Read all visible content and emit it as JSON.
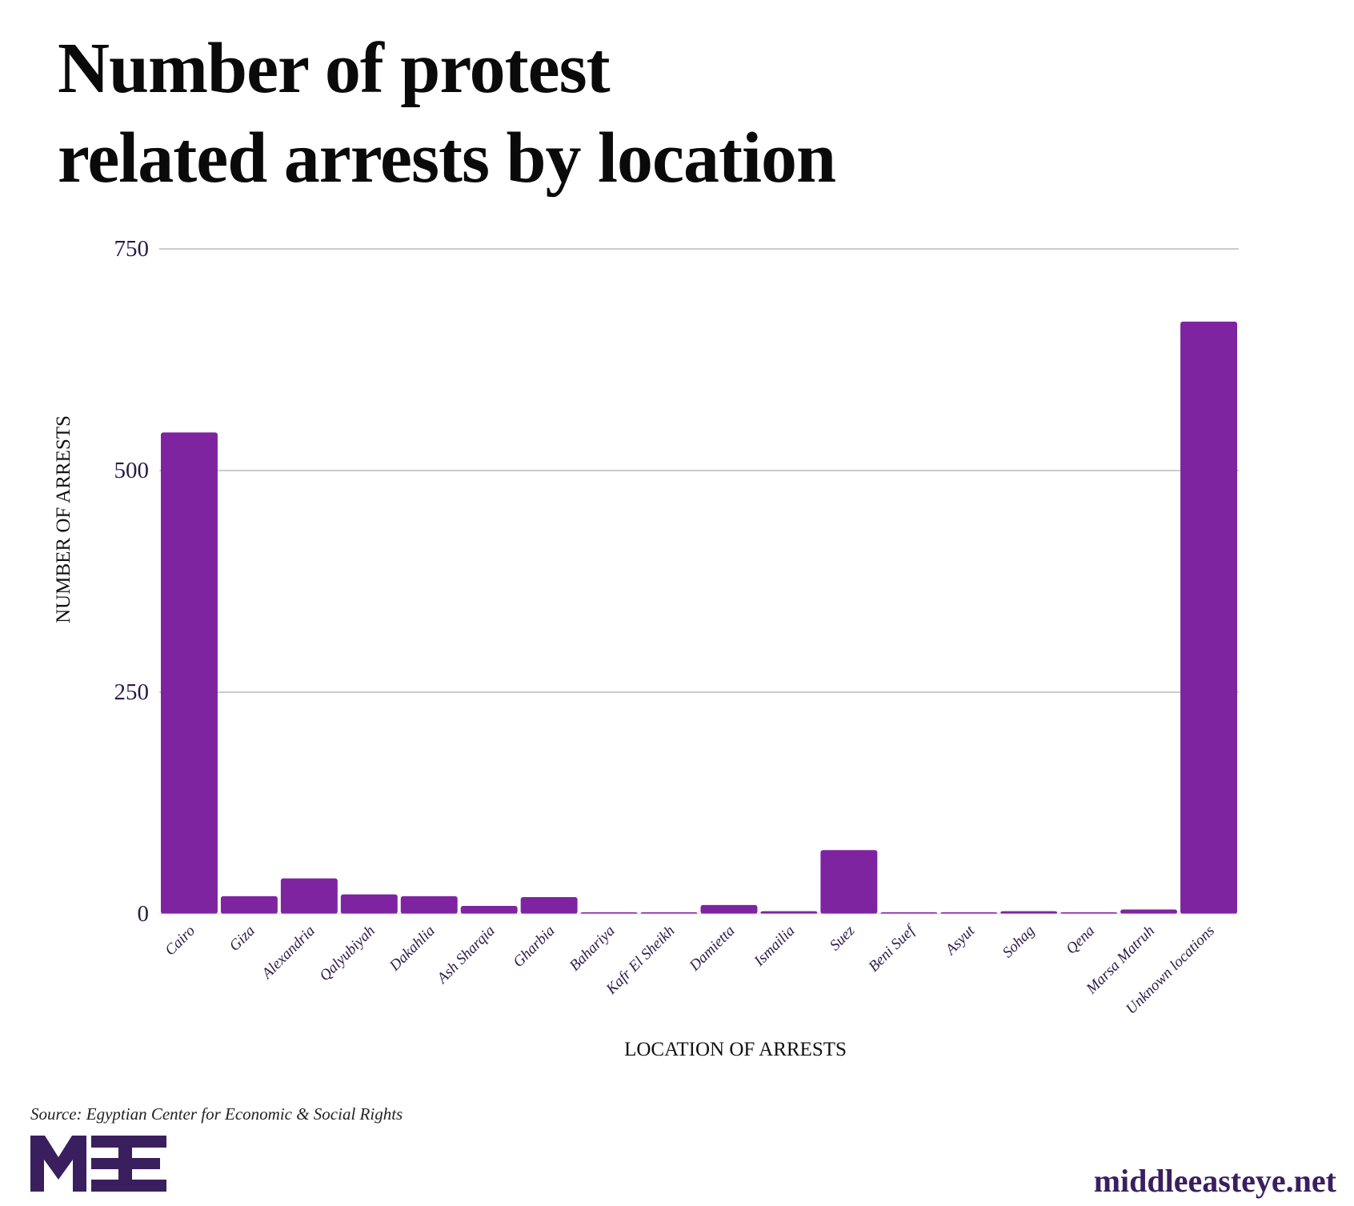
{
  "title_lines": [
    "Number of protest",
    "related arrests by location"
  ],
  "source": "Source: Egyptian Center for Economic & Social Rights",
  "logo_text": "MEE",
  "site": "middleeasteye.net",
  "colors": {
    "bar": "#7e24a0",
    "text": "#2b1a47",
    "grid": "#cccccc",
    "brand": "#3a1f5e"
  },
  "chart_data": {
    "type": "bar",
    "title": "Number of protest related arrests by location",
    "xlabel": "LOCATION OF ARRESTS",
    "ylabel": "NUMBER OF ARRESTS",
    "ylim": [
      0,
      750
    ],
    "yticks": [
      0,
      250,
      500,
      750
    ],
    "grid": true,
    "categories": [
      "Cairo",
      "Giza",
      "Alexandria",
      "Qalyubiyah",
      "Dakahlia",
      "Ash Sharqia",
      "Gharbia",
      "Bahariya",
      "Kafr El Sheikh",
      "Damietta",
      "Ismailia",
      "Suez",
      "Beni Suef",
      "Asyut",
      "Sohag",
      "Qena",
      "Marsa Matruh",
      "Unknown locations"
    ],
    "values": [
      543,
      20,
      40,
      22,
      20,
      9,
      19,
      1,
      1,
      10,
      3,
      72,
      1,
      1,
      3,
      1,
      5,
      668
    ]
  }
}
